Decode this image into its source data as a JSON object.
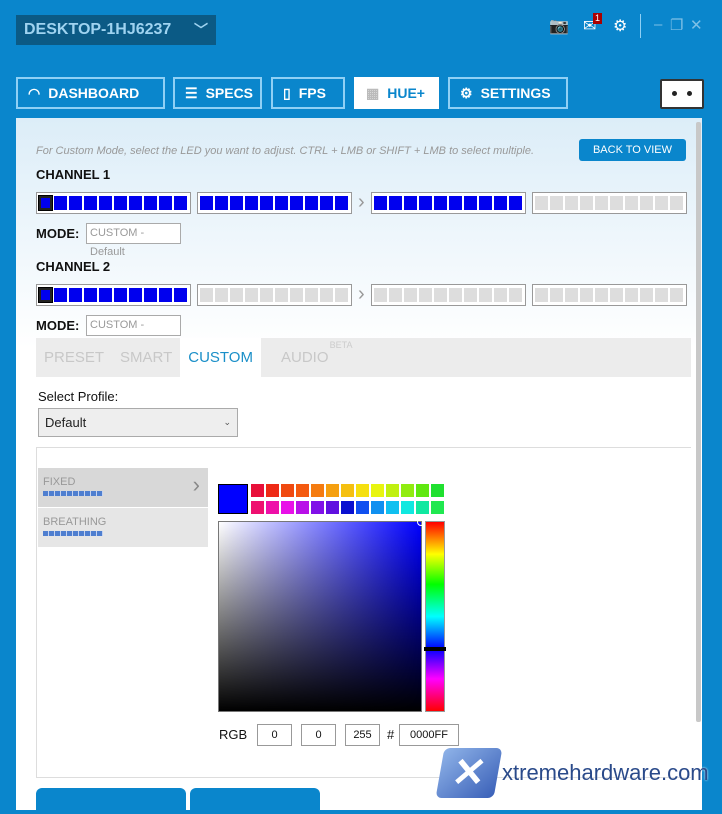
{
  "header": {
    "device": "DESKTOP-1HJ6237",
    "notification_count": "1"
  },
  "nav": [
    {
      "label": "DASHBOARD",
      "icon": "speedometer-icon"
    },
    {
      "label": "SPECS",
      "icon": "list-icon"
    },
    {
      "label": "FPS",
      "icon": "frame-icon"
    },
    {
      "label": "HUE+",
      "icon": "grid-icon",
      "active": true
    },
    {
      "label": "SETTINGS",
      "icon": "gear-icon"
    }
  ],
  "hint": "For Custom Mode, select the LED you want to adjust. CTRL + LMB or SHIFT + LMB to select multiple.",
  "back_label": "BACK TO VIEW",
  "mode_label": "MODE:",
  "channels": [
    {
      "label": "CHANNEL 1",
      "mode": "CUSTOM - Default",
      "segments": [
        10,
        10,
        10,
        0
      ]
    },
    {
      "label": "CHANNEL 2",
      "mode": "CUSTOM - Default",
      "segments": [
        10,
        0,
        0,
        0
      ]
    }
  ],
  "tabs": [
    {
      "label": "PRESET"
    },
    {
      "label": "SMART"
    },
    {
      "label": "CUSTOM",
      "active": true
    },
    {
      "label": "AUDIO",
      "badge": "BETA"
    }
  ],
  "profile": {
    "label": "Select Profile:",
    "value": "Default"
  },
  "effects": [
    {
      "label": "FIXED",
      "active": true
    },
    {
      "label": "BREATHING"
    }
  ],
  "color": {
    "selected": "#0000FF",
    "r": "0",
    "g": "0",
    "b": "255",
    "hex_label": "#",
    "hex": "0000FF",
    "rgb_label": "RGB",
    "swatches_top": [
      "#e8103a",
      "#ee2a16",
      "#f04a10",
      "#f45a10",
      "#f57c10",
      "#f5a010",
      "#f5c010",
      "#f5e010",
      "#e8f510",
      "#c0f010",
      "#90ec10",
      "#60e810",
      "#20e030"
    ],
    "swatches_bottom": [
      "#ee1070",
      "#ee10a8",
      "#e810e8",
      "#b810e8",
      "#8010e8",
      "#6010e0",
      "#0a10d0",
      "#1050f0",
      "#1090f0",
      "#10c0f0",
      "#10e8e0",
      "#10e8a0",
      "#20e850"
    ]
  },
  "watermark": "xtremehardware.com",
  "accent": "#0a86cc"
}
